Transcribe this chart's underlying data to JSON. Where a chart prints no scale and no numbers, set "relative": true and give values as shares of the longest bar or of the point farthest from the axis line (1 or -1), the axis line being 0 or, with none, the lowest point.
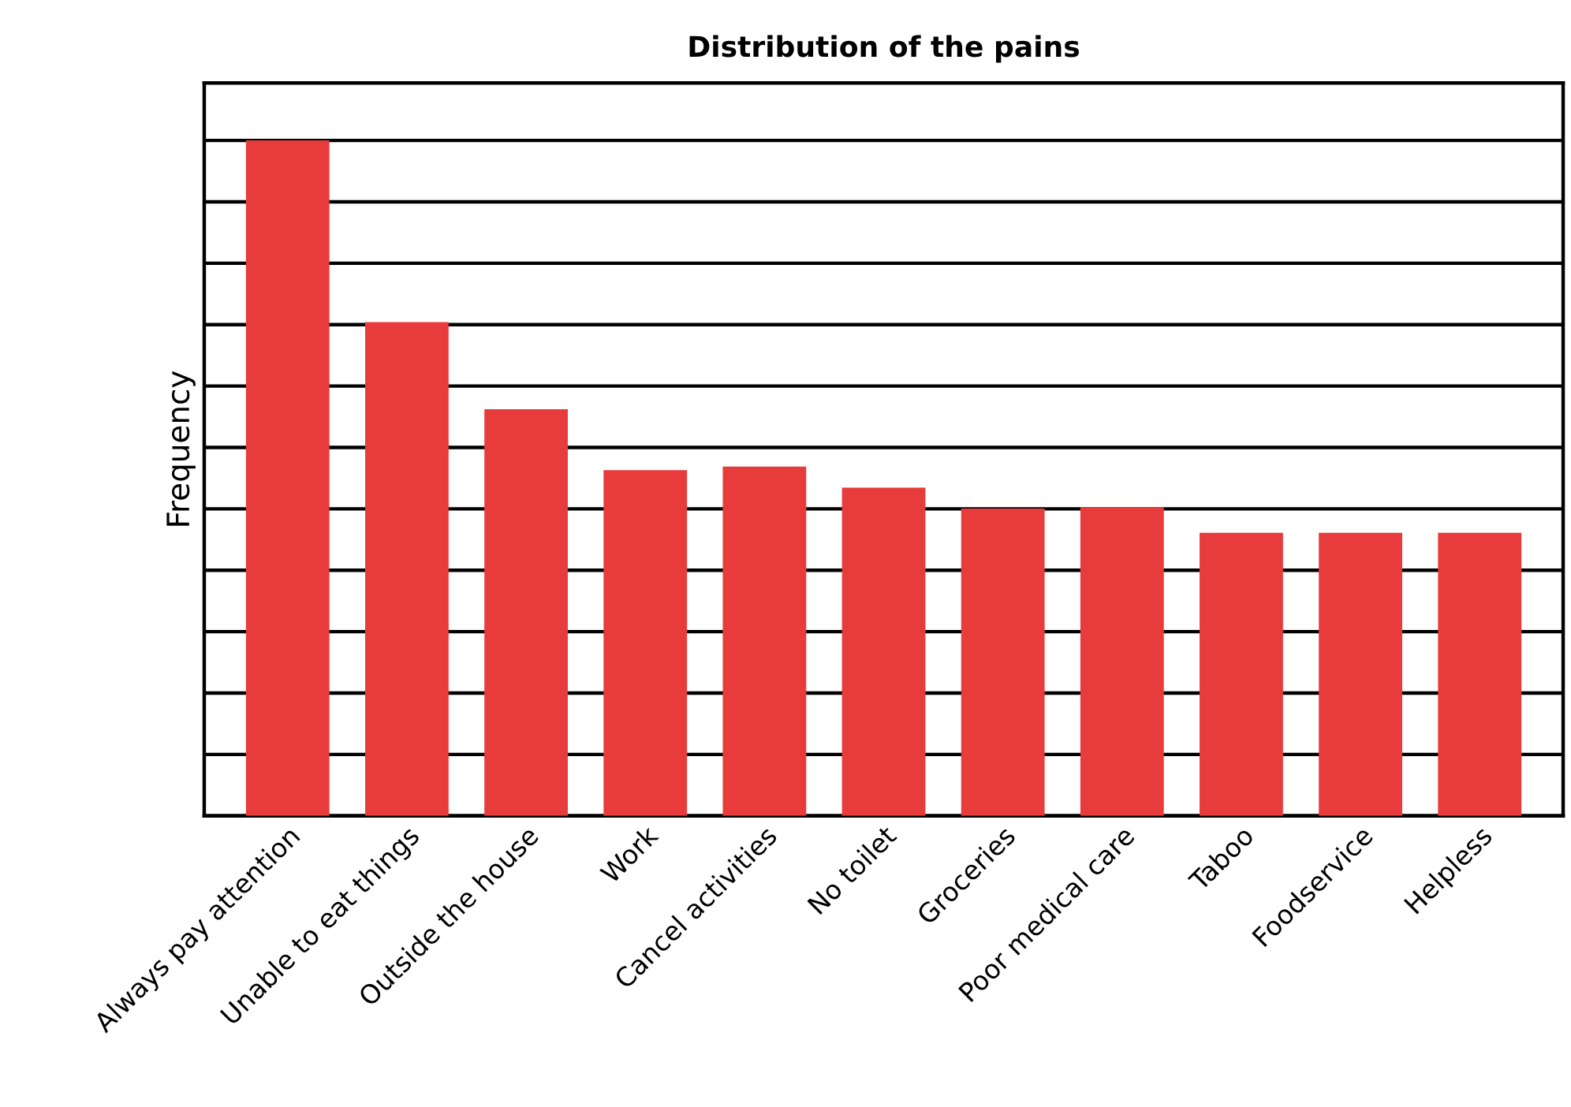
{
  "chart_data": {
    "type": "bar",
    "title": "Distribution of the pains",
    "ylabel": "Frequency",
    "relative": true,
    "grid": "y",
    "color": "#e83c3c",
    "categories": [
      "Always pay attention",
      "Unable to eat things",
      "Outside the house",
      "Work",
      "Cancel activities",
      "No toilet",
      "Groceries",
      "Poor medical care",
      "Taboo",
      "Foodservice",
      "Helpless"
    ],
    "values": [
      1,
      0.731,
      0.602,
      0.512,
      0.517,
      0.486,
      0.455,
      0.457,
      0.419,
      0.419,
      0.419
    ]
  }
}
